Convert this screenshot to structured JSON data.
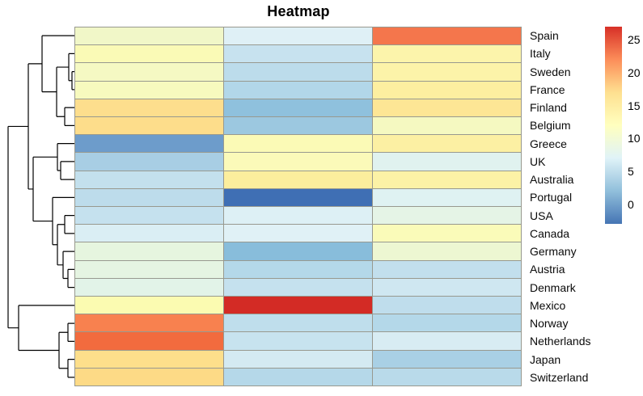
{
  "title": "Heatmap",
  "colors": {
    "background": "#ffffff",
    "grid_border": "#98998f",
    "dendrogram_line": "#000000",
    "label_color": "#0a0a0a"
  },
  "chart_data": {
    "type": "heatmap",
    "rows": [
      "Spain",
      "Italy",
      "Sweden",
      "France",
      "Finland",
      "Belgium",
      "Greece",
      "UK",
      "Australia",
      "Portugal",
      "USA",
      "Canada",
      "Germany",
      "Austria",
      "Denmark",
      "Mexico",
      "Norway",
      "Netherlands",
      "Japan",
      "Switzerland"
    ],
    "n_columns": 3,
    "column_labels_visible": false,
    "values": [
      [
        10.4,
        6.9,
        23.1
      ],
      [
        11.7,
        5.4,
        14.1
      ],
      [
        10.6,
        4.7,
        14.3
      ],
      [
        11.0,
        4.2,
        14.9
      ],
      [
        17.2,
        1.9,
        16.1
      ],
      [
        17.3,
        2.7,
        10.6
      ],
      [
        -0.4,
        11.8,
        14.7
      ],
      [
        3.5,
        11.7,
        7.8
      ],
      [
        5.2,
        15.2,
        14.4
      ],
      [
        4.8,
        -3.0,
        7.5
      ],
      [
        5.3,
        6.8,
        8.5
      ],
      [
        6.6,
        7.0,
        11.6
      ],
      [
        8.6,
        1.6,
        9.7
      ],
      [
        8.4,
        4.3,
        5.1
      ],
      [
        7.9,
        5.3,
        5.9
      ],
      [
        11.9,
        27.0,
        4.9
      ],
      [
        22.6,
        4.9,
        4.3
      ],
      [
        23.8,
        5.5,
        6.4
      ],
      [
        17.2,
        6.2,
        3.6
      ],
      [
        17.6,
        4.4,
        4.5
      ]
    ],
    "cell_colors": [
      [
        "#F1F7C8",
        "#DFF0F6",
        "#F4764C"
      ],
      [
        "#FAFAB6",
        "#C7E2EF",
        "#FCF4AB"
      ],
      [
        "#F5F9C3",
        "#BCDCEB",
        "#FCF3A9"
      ],
      [
        "#F7FABE",
        "#B2D7E9",
        "#FDEFA0"
      ],
      [
        "#FDDE8D",
        "#8FC1DD",
        "#FDE695"
      ],
      [
        "#FDDD8B",
        "#9CC8E0",
        "#F5F9C1"
      ],
      [
        "#6D9CCB",
        "#FBFAB6",
        "#FCF0A3"
      ],
      [
        "#A8CEE4",
        "#FBFAB9",
        "#E0F2EF"
      ],
      [
        "#C3E0ED",
        "#FCEE9D",
        "#FCF2A6"
      ],
      [
        "#BDDCEB",
        "#3F6FB4",
        "#DFF2F2"
      ],
      [
        "#C5E1EE",
        "#DDF0F5",
        "#E5F4E6"
      ],
      [
        "#DAEEF4",
        "#E0F1F6",
        "#FAFBB9"
      ],
      [
        "#E6F5DF",
        "#88BDDB",
        "#EDF7D2"
      ],
      [
        "#E5F4E2",
        "#B4D8E9",
        "#C2DFED"
      ],
      [
        "#E2F3E8",
        "#C5E1EE",
        "#CFE7F1"
      ],
      [
        "#FBFBB1",
        "#D32B25",
        "#BFDDEC"
      ],
      [
        "#F8814F",
        "#BFDEEC",
        "#B4D8E9"
      ],
      [
        "#F26B3E",
        "#C7E3EF",
        "#D8ECF3"
      ],
      [
        "#FDDF8B",
        "#D4EAF2",
        "#A9D0E5"
      ],
      [
        "#FDDA86",
        "#B5D8E9",
        "#B9DAEA"
      ]
    ],
    "legend": {
      "ticks": [
        25,
        20,
        15,
        10,
        5,
        0
      ],
      "scale_min": -3,
      "scale_max": 27,
      "colormap_stops_low_to_high": [
        "#4575B4",
        "#91BFDB",
        "#E0F3F8",
        "#FFFFBF",
        "#FEE090",
        "#FC8D59",
        "#D73027"
      ]
    },
    "row_dendrogram": {
      "nodes": [
        {
          "id": "A",
          "x": 89,
          "children": [
            "leaf:2",
            "leaf:3"
          ]
        },
        {
          "id": "B",
          "x": 85,
          "children": [
            "leaf:1",
            "A"
          ]
        },
        {
          "id": "D",
          "x": 80,
          "children": [
            "leaf:4",
            "leaf:5"
          ]
        },
        {
          "id": "C",
          "x": 70,
          "children": [
            "B",
            "D"
          ]
        },
        {
          "id": "E",
          "x": 52,
          "children": [
            "leaf:0",
            "C"
          ]
        },
        {
          "id": "UA",
          "x": 75,
          "children": [
            "leaf:7",
            "leaf:8"
          ]
        },
        {
          "id": "F",
          "x": 71,
          "children": [
            "leaf:6",
            "UA"
          ]
        },
        {
          "id": "K",
          "x": 80,
          "children": [
            "leaf:10",
            "leaf:11"
          ]
        },
        {
          "id": "LD",
          "x": 84,
          "children": [
            "leaf:13",
            "leaf:14"
          ]
        },
        {
          "id": "M",
          "x": 78,
          "children": [
            "leaf:12",
            "LD"
          ]
        },
        {
          "id": "N",
          "x": 71,
          "children": [
            "K",
            "M"
          ]
        },
        {
          "id": "J",
          "x": 65,
          "children": [
            "leaf:9",
            "N"
          ]
        },
        {
          "id": "I",
          "x": 41,
          "children": [
            "F",
            "J"
          ]
        },
        {
          "id": "H",
          "x": 35,
          "children": [
            "E",
            "I"
          ]
        },
        {
          "id": "Q",
          "x": 84,
          "children": [
            "leaf:16",
            "leaf:17"
          ]
        },
        {
          "id": "R",
          "x": 84,
          "children": [
            "leaf:18",
            "leaf:19"
          ]
        },
        {
          "id": "P",
          "x": 73,
          "children": [
            "Q",
            "R"
          ]
        },
        {
          "id": "O",
          "x": 23,
          "children": [
            "leaf:15",
            "P"
          ]
        },
        {
          "id": "ROOT",
          "x": 10,
          "children": [
            "H",
            "O"
          ]
        }
      ]
    }
  }
}
